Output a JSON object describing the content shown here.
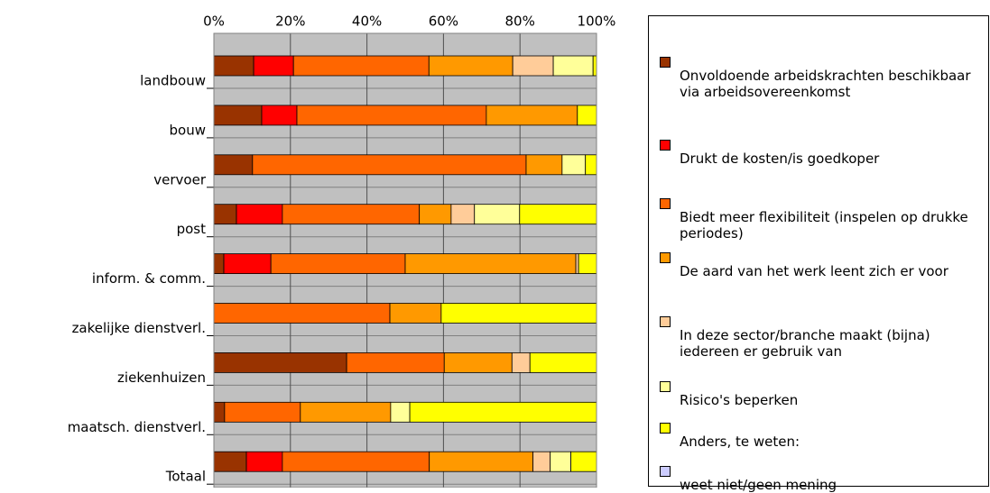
{
  "chart_data": {
    "type": "stacked-barh",
    "categories": [
      "landbouw",
      "bouw",
      "vervoer",
      "post",
      "inform. & comm.",
      "zakelijke dienstverl.",
      "ziekenhuizen",
      "maatsch. dienstverl.",
      "Totaal"
    ],
    "series": [
      {
        "name": "Onvoldoende arbeidskrachten beschikbaar via arbeidsovereenkomst",
        "color": "#993300",
        "values": [
          10.4,
          12.5,
          10.1,
          5.9,
          2.6,
          0,
          34.7,
          2.8,
          8.5
        ]
      },
      {
        "name": "Drukt de kosten/is goedkoper",
        "color": "#ff0000",
        "values": [
          10.4,
          9.2,
          0,
          12.0,
          12.3,
          0,
          0,
          0,
          9.4
        ]
      },
      {
        "name": "Biedt meer flexibiliteit (inspelen op drukke periodes)",
        "color": "#ff6600",
        "values": [
          35.4,
          49.5,
          71.5,
          35.8,
          35.1,
          46.0,
          25.5,
          19.8,
          38.4
        ]
      },
      {
        "name": "De aard van het werk leent zich er voor",
        "color": "#ff9900",
        "values": [
          21.9,
          23.8,
          9.4,
          8.3,
          44.6,
          13.4,
          17.7,
          23.6,
          27.1
        ]
      },
      {
        "name": "In deze sector/branche maakt (bijna) iedereen er gebruik van",
        "color": "#ffcc99",
        "values": [
          10.6,
          0,
          0,
          6.1,
          0.7,
          0,
          4.7,
          0,
          4.5
        ]
      },
      {
        "name": "Risico's beperken",
        "color": "#ffff99",
        "values": [
          10.4,
          0,
          6.1,
          11.8,
          0,
          0,
          0,
          5.0,
          5.4
        ]
      },
      {
        "name": "Anders, te weten:",
        "color": "#ffff00",
        "values": [
          0.9,
          5.0,
          2.9,
          20.1,
          4.7,
          40.6,
          17.4,
          48.8,
          6.7
        ]
      },
      {
        "name": "weet niet/geen mening",
        "color": "#ccccff",
        "values": [
          0,
          0,
          0,
          0,
          0,
          0,
          0,
          0,
          0
        ]
      }
    ],
    "xlim": [
      0,
      100
    ],
    "xticks": [
      {
        "value": 0,
        "label": "0%"
      },
      {
        "value": 20,
        "label": "20%"
      },
      {
        "value": 40,
        "label": "40%"
      },
      {
        "value": 60,
        "label": "60%"
      },
      {
        "value": 80,
        "label": "80%"
      },
      {
        "value": 100,
        "label": "100%"
      }
    ],
    "grid": true,
    "legend": "right"
  }
}
